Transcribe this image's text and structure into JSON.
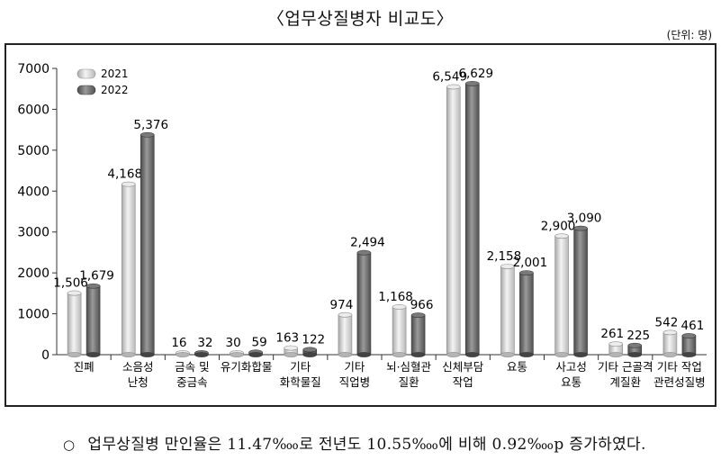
{
  "title": "〈업무상질병자 비교도〉",
  "unit": "(단위: 명)",
  "note": "업무상질병 만인율은 11.47‱로 전년도 10.55‱에 비해 0.92‱p 증가하였다.",
  "note_bullet": "○",
  "chart_data": {
    "type": "bar",
    "xlabel": "",
    "ylabel": "",
    "ylim": [
      0,
      7000
    ],
    "yticks": [
      0,
      1000,
      2000,
      3000,
      4000,
      5000,
      6000,
      7000
    ],
    "ytick_labels": [
      "0",
      "1000",
      "2000",
      "3000",
      "4000",
      "5000",
      "6000",
      "7000"
    ],
    "grid": false,
    "legend_position": "top-left",
    "categories": [
      [
        "진폐"
      ],
      [
        "소음성",
        "난청"
      ],
      [
        "금속 및",
        "중금속"
      ],
      [
        "유기화합물"
      ],
      [
        "기타",
        "화학물질"
      ],
      [
        "기타",
        "직업병"
      ],
      [
        "뇌·심혈관",
        "질환"
      ],
      [
        "신체부담",
        "작업"
      ],
      [
        "요통"
      ],
      [
        "사고성",
        "요통"
      ],
      [
        "기타 근골격",
        "계질환"
      ],
      [
        "기타 작업",
        "관련성질병"
      ]
    ],
    "series": [
      {
        "name": "2021",
        "color": "#d8d8d8",
        "values": [
          1506,
          4168,
          16,
          30,
          163,
          974,
          1168,
          6549,
          2158,
          2900,
          261,
          542
        ],
        "labels": [
          "1,506",
          "4,168",
          "16",
          "30",
          "163",
          "974",
          "1,168",
          "6,549",
          "2,158",
          "2,900",
          "261",
          "542"
        ]
      },
      {
        "name": "2022",
        "color": "#6b6b6b",
        "values": [
          1679,
          5376,
          32,
          59,
          122,
          2494,
          966,
          6629,
          2001,
          3090,
          225,
          461
        ],
        "labels": [
          "1,679",
          "5,376",
          "32",
          "59",
          "122",
          "2,494",
          "966",
          "6,629",
          "2,001",
          "3,090",
          "225",
          "461"
        ]
      }
    ]
  }
}
